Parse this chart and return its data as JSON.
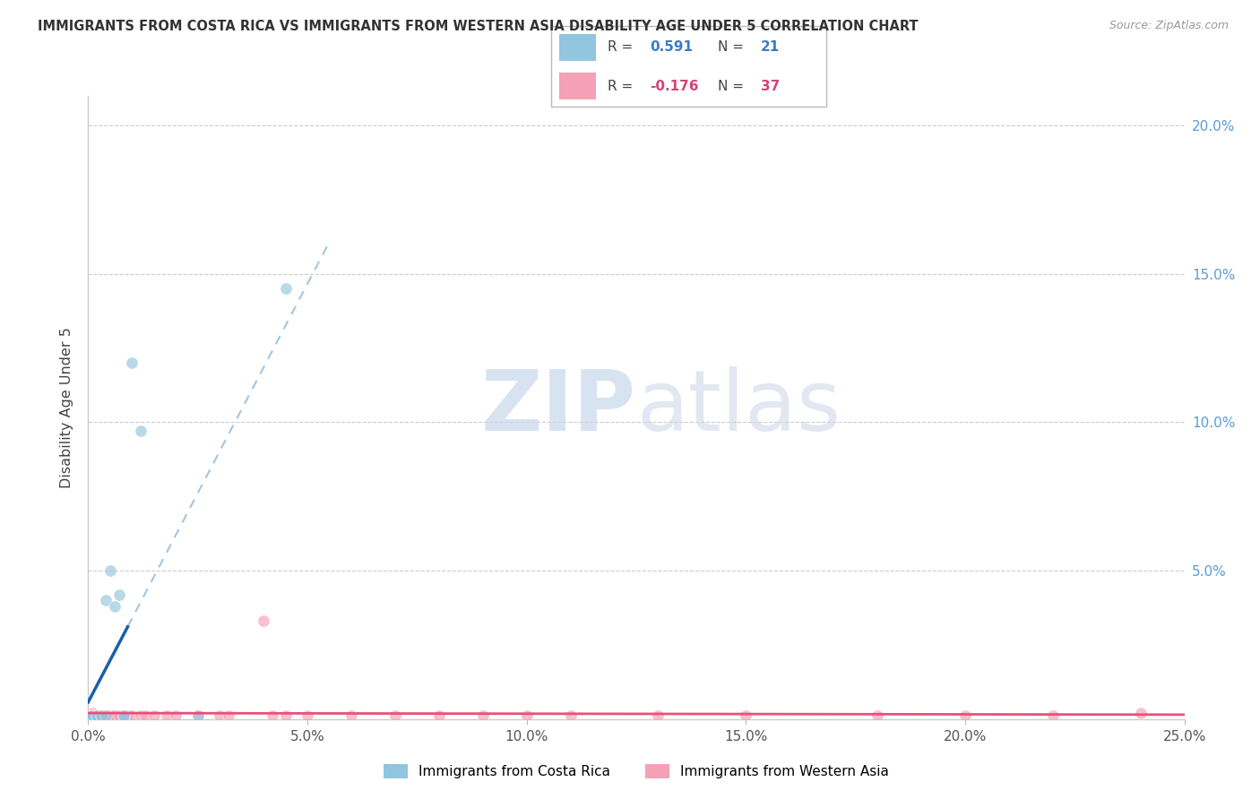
{
  "title": "IMMIGRANTS FROM COSTA RICA VS IMMIGRANTS FROM WESTERN ASIA DISABILITY AGE UNDER 5 CORRELATION CHART",
  "source": "Source: ZipAtlas.com",
  "ylabel": "Disability Age Under 5",
  "xlim": [
    0.0,
    0.25
  ],
  "ylim": [
    0.0,
    0.21
  ],
  "xticks": [
    0.0,
    0.05,
    0.1,
    0.15,
    0.2,
    0.25
  ],
  "yticks": [
    0.0,
    0.05,
    0.1,
    0.15,
    0.2
  ],
  "xticklabels": [
    "0.0%",
    "5.0%",
    "10.0%",
    "15.0%",
    "20.0%",
    "25.0%"
  ],
  "yticklabels_right": [
    "",
    "5.0%",
    "10.0%",
    "15.0%",
    "20.0%"
  ],
  "r_cr": 0.591,
  "n_cr": 21,
  "r_wa": -0.176,
  "n_wa": 37,
  "color_blue": "#92C5DE",
  "color_pink": "#F4A0B5",
  "color_blue_line": "#1A5FA8",
  "color_pink_line": "#E8507A",
  "color_blue_dash": "#9ABFDC",
  "watermark_zip": "ZIP",
  "watermark_atlas": "atlas",
  "cr_x": [
    0.001,
    0.001,
    0.001,
    0.001,
    0.001,
    0.002,
    0.002,
    0.002,
    0.003,
    0.003,
    0.004,
    0.004,
    0.005,
    0.006,
    0.007,
    0.008,
    0.01,
    0.012,
    0.025,
    0.008,
    0.045
  ],
  "cr_y": [
    0.001,
    0.001,
    0.001,
    0.001,
    0.001,
    0.001,
    0.001,
    0.001,
    0.001,
    0.001,
    0.001,
    0.04,
    0.05,
    0.038,
    0.042,
    0.001,
    0.12,
    0.097,
    0.001,
    0.001,
    0.145
  ],
  "wa_x": [
    0.001,
    0.001,
    0.002,
    0.003,
    0.004,
    0.004,
    0.005,
    0.006,
    0.006,
    0.007,
    0.008,
    0.009,
    0.01,
    0.012,
    0.013,
    0.015,
    0.018,
    0.02,
    0.025,
    0.03,
    0.032,
    0.04,
    0.042,
    0.045,
    0.05,
    0.06,
    0.07,
    0.08,
    0.09,
    0.1,
    0.11,
    0.13,
    0.15,
    0.18,
    0.2,
    0.22,
    0.24
  ],
  "wa_y": [
    0.001,
    0.002,
    0.001,
    0.001,
    0.001,
    0.001,
    0.001,
    0.001,
    0.001,
    0.001,
    0.001,
    0.001,
    0.001,
    0.001,
    0.001,
    0.001,
    0.001,
    0.001,
    0.001,
    0.001,
    0.001,
    0.033,
    0.001,
    0.001,
    0.001,
    0.001,
    0.001,
    0.001,
    0.001,
    0.001,
    0.001,
    0.001,
    0.001,
    0.001,
    0.001,
    0.001,
    0.002
  ]
}
